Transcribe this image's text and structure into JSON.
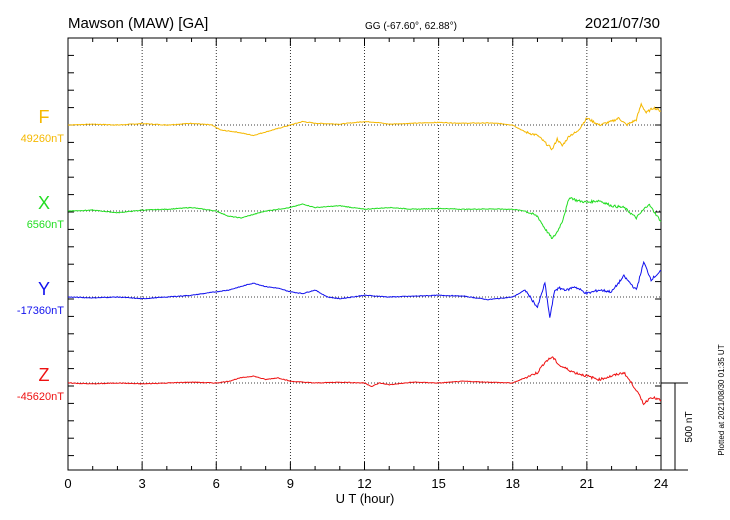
{
  "header": {
    "station": "Mawson (MAW)  [GA]",
    "coords": "GG (-67.60°,  62.88°)",
    "date": "2021/07/30"
  },
  "footer": {
    "plotted": "Plotted at 2021/08/30 01:35 UT",
    "scale_label": "500 nT"
  },
  "chart_data": {
    "type": "line",
    "xlabel": "U T (hour)",
    "xlim": [
      0,
      24
    ],
    "x_ticks": [
      "0",
      "3",
      "6",
      "9",
      "12",
      "15",
      "18",
      "21",
      "24"
    ],
    "scale_bar_nT": 500,
    "grid": true,
    "series": [
      {
        "name": "F",
        "baseline_label": "49260nT",
        "color": "#f5b800",
        "x": [
          0,
          1,
          2,
          3,
          4,
          5,
          5.8,
          6.2,
          6.8,
          7.5,
          8,
          8.5,
          9,
          9.5,
          10,
          11,
          12,
          12.5,
          13,
          14,
          15,
          16,
          17,
          17.5,
          18,
          18.5,
          19,
          19.3,
          19.6,
          19.8,
          20,
          20.3,
          20.6,
          21,
          21.5,
          22,
          22.3,
          22.6,
          23,
          23.2,
          23.4,
          23.7,
          24
        ],
        "values": [
          0,
          5,
          0,
          8,
          0,
          10,
          0,
          -30,
          -40,
          -60,
          -40,
          -20,
          0,
          20,
          10,
          5,
          20,
          15,
          5,
          10,
          15,
          10,
          12,
          8,
          0,
          -40,
          -60,
          -100,
          -140,
          -80,
          -120,
          -60,
          -40,
          40,
          0,
          20,
          40,
          0,
          30,
          120,
          70,
          100,
          80
        ]
      },
      {
        "name": "X",
        "baseline_label": "6560nT",
        "color": "#22dd22",
        "x": [
          0,
          1,
          2,
          3,
          4,
          5,
          6,
          6.5,
          7,
          7.5,
          8,
          9,
          9.5,
          10,
          11,
          12,
          13,
          14,
          15,
          16,
          17,
          18,
          18.5,
          19,
          19.3,
          19.6,
          19.8,
          20,
          20.3,
          20.6,
          21,
          21.5,
          22,
          22.5,
          23,
          23.5,
          24
        ],
        "values": [
          0,
          5,
          -10,
          5,
          10,
          20,
          0,
          -30,
          -40,
          -20,
          0,
          20,
          40,
          20,
          30,
          10,
          20,
          10,
          15,
          10,
          12,
          10,
          0,
          -30,
          -100,
          -160,
          -120,
          -60,
          80,
          60,
          50,
          60,
          30,
          20,
          -40,
          40,
          -60
        ]
      },
      {
        "name": "Y",
        "baseline_label": "-17360nT",
        "color": "#1111ee",
        "x": [
          0,
          1,
          2,
          3,
          4,
          5,
          5.5,
          6,
          6.5,
          7,
          7.5,
          8,
          8.5,
          9,
          9.5,
          10,
          10.5,
          11,
          12,
          13,
          14,
          15,
          16,
          17,
          18,
          18.5,
          19,
          19.3,
          19.5,
          19.7,
          19.9,
          20.2,
          20.5,
          21,
          21.5,
          22,
          22.5,
          23,
          23.3,
          23.6,
          24
        ],
        "values": [
          0,
          -5,
          0,
          -10,
          0,
          10,
          20,
          30,
          40,
          60,
          80,
          60,
          50,
          30,
          20,
          40,
          0,
          -10,
          10,
          0,
          5,
          10,
          5,
          -15,
          0,
          40,
          -60,
          80,
          -120,
          40,
          50,
          40,
          60,
          20,
          40,
          30,
          120,
          40,
          200,
          100,
          150
        ]
      },
      {
        "name": "Z",
        "baseline_label": "-45620nT",
        "color": "#ee1111",
        "x": [
          0,
          1,
          2,
          3,
          4,
          5,
          6,
          6.5,
          7,
          7.5,
          8,
          8.5,
          9,
          10,
          11,
          12,
          12.3,
          12.6,
          13,
          14,
          15,
          16,
          17,
          18,
          18.5,
          19,
          19.3,
          19.6,
          19.9,
          20.2,
          20.5,
          21,
          21.5,
          22,
          22.5,
          23,
          23.3,
          23.6,
          24
        ],
        "values": [
          0,
          -5,
          0,
          -5,
          0,
          5,
          0,
          10,
          30,
          40,
          20,
          30,
          10,
          0,
          5,
          0,
          -20,
          0,
          -10,
          5,
          0,
          10,
          5,
          0,
          30,
          60,
          120,
          150,
          100,
          80,
          60,
          40,
          20,
          40,
          60,
          -40,
          -120,
          -80,
          -100
        ]
      }
    ]
  }
}
